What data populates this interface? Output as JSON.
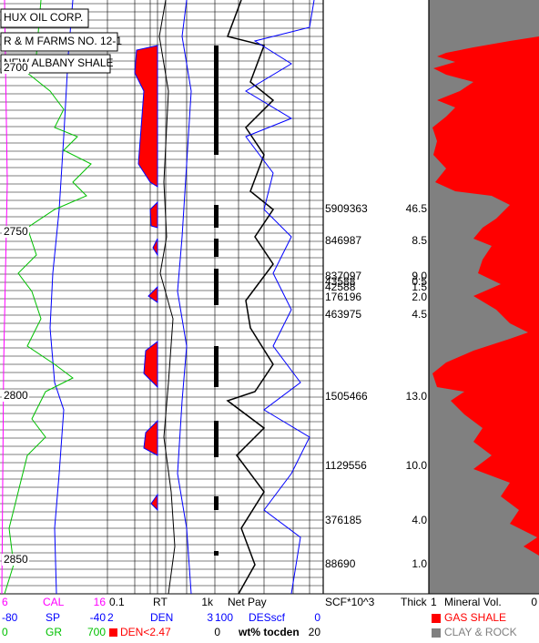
{
  "header": {
    "company": "HUX OIL CORP.",
    "well": "R & M FARMS NO. 12-1",
    "formation": "NEW ALBANY SHALE"
  },
  "depth_labels": [
    2700,
    2750,
    2800,
    2850
  ],
  "pay_zones": [
    {
      "scf": 5909363,
      "thick": "46.5"
    },
    {
      "scf": 846987,
      "thick": "8.5"
    },
    {
      "scf": 837097,
      "thick": "9.0"
    },
    {
      "scf": 43588,
      "thick": "0.5"
    },
    {
      "scf": 42588,
      "thick": "1.5"
    },
    {
      "scf": 176196,
      "thick": "2.0"
    },
    {
      "scf": 463975,
      "thick": "4.5"
    },
    {
      "scf": 1505466,
      "thick": "13.0"
    },
    {
      "scf": 1129556,
      "thick": "10.0"
    },
    {
      "scf": 376185,
      "thick": "4.0"
    },
    {
      "scf": 88690,
      "thick": "1.0"
    }
  ],
  "legend": {
    "track1": [
      {
        "min": "6",
        "name": "CAL",
        "max": "16"
      },
      {
        "min": "-80",
        "name": "SP",
        "max": "-40"
      },
      {
        "min": "0",
        "name": "GR",
        "max": "700"
      }
    ],
    "track2": [
      {
        "min": "0.1",
        "name": "RT",
        "max": "1k"
      },
      {
        "min": "2",
        "name": "DEN",
        "max": "3"
      },
      {
        "name": "DEN<2.47",
        "max": "0"
      }
    ],
    "track3": [
      {
        "name": "Net Pay"
      },
      {
        "min": "100",
        "name": "DESscf",
        "max": "0"
      },
      {
        "name": "wt% tocden",
        "max": "20"
      }
    ],
    "track4": [
      "SCF*10^3",
      "Thick"
    ],
    "track5": {
      "min": "1",
      "name": "Mineral Vol.",
      "max": "0",
      "items": [
        "GAS SHALE",
        "CLAY & ROCK"
      ]
    }
  }
}
